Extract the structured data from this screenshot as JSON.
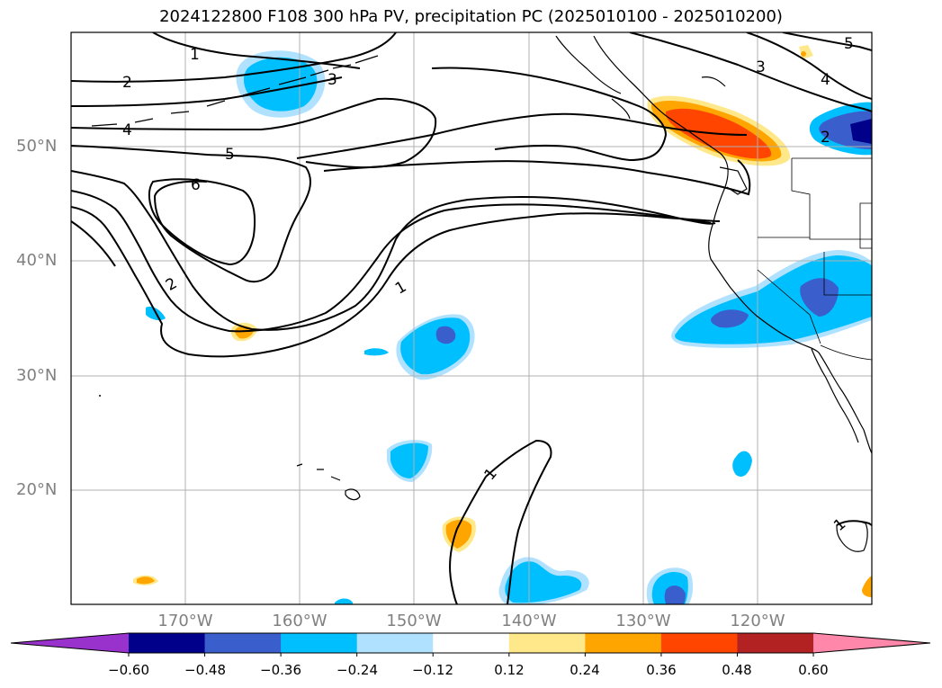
{
  "title": "2024122800 F108 300 hPa PV, precipitation PC (2025010100 - 2025010200)",
  "map": {
    "lon_range": [
      -180,
      -110
    ],
    "lat_range": [
      10,
      60
    ],
    "lat_ticks": [
      {
        "label": "50°N",
        "value": 50
      },
      {
        "label": "40°N",
        "value": 40
      },
      {
        "label": "30°N",
        "value": 30
      },
      {
        "label": "20°N",
        "value": 20
      }
    ],
    "lon_ticks": [
      {
        "label": "170°W",
        "value": -170
      },
      {
        "label": "160°W",
        "value": -160
      },
      {
        "label": "150°W",
        "value": -150
      },
      {
        "label": "140°W",
        "value": -140
      },
      {
        "label": "130°W",
        "value": -130
      },
      {
        "label": "120°W",
        "value": -120
      }
    ],
    "pv_contour_labels": [
      "1",
      "2",
      "3",
      "4",
      "5",
      "6"
    ]
  },
  "colorbar": {
    "levels": [
      "−0.60",
      "−0.48",
      "−0.36",
      "−0.24",
      "−0.12",
      "0.12",
      "0.24",
      "0.36",
      "0.48",
      "0.60"
    ],
    "colors": [
      "#9932cc",
      "#00008b",
      "#3a5fcd",
      "#00bfff",
      "#b0e2ff",
      "#ffffff",
      "#ffe88a",
      "#ffa500",
      "#ff4500",
      "#b22222",
      "#ff88aa"
    ]
  },
  "colors": {
    "grid": "#b0b0b0",
    "contour": "#000000",
    "coast": "#000000"
  }
}
